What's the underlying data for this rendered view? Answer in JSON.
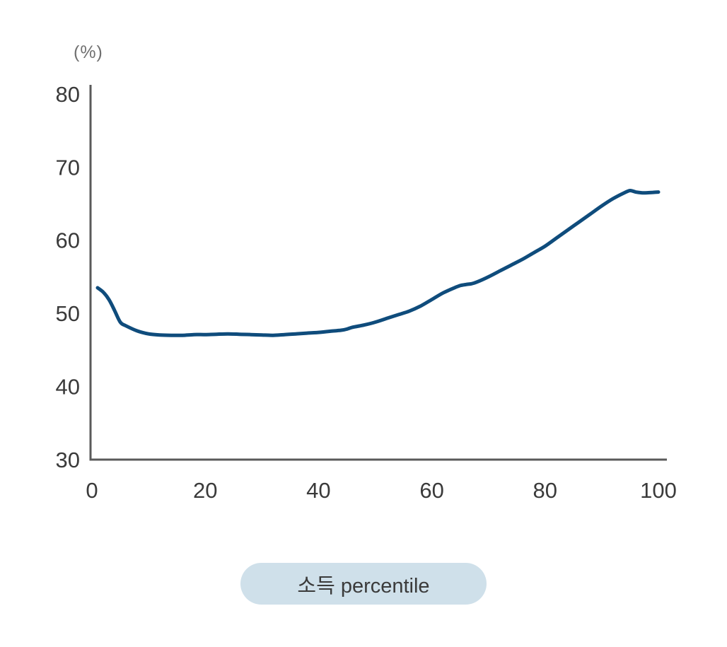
{
  "page": {
    "background": "#ffffff"
  },
  "badge": {
    "bg_color": "#cfe0ea",
    "text_color": "#3b3b3b"
  },
  "chart_data": {
    "type": "line",
    "title": "",
    "ylabel": "(%)",
    "xlabel": "소득 percentile",
    "legend": "none",
    "grid": false,
    "xlim": [
      0,
      100
    ],
    "ylim": [
      30,
      80
    ],
    "xticks": [
      0,
      20,
      40,
      60,
      80,
      100
    ],
    "yticks": [
      30,
      40,
      50,
      60,
      70,
      80
    ],
    "line_color": "#0f4c7c",
    "axis_color": "#5a5a5a",
    "tick_label_color": "#3a3a3a",
    "x": [
      1,
      2,
      3,
      4,
      5,
      6,
      8,
      10,
      12,
      14,
      16,
      18,
      20,
      22,
      24,
      26,
      28,
      30,
      32,
      34,
      36,
      38,
      40,
      42,
      44,
      45,
      46,
      48,
      50,
      52,
      54,
      56,
      58,
      60,
      62,
      64,
      65,
      66,
      67,
      68,
      70,
      72,
      74,
      76,
      78,
      80,
      82,
      84,
      86,
      88,
      90,
      92,
      94,
      95,
      96,
      97,
      98,
      99,
      100
    ],
    "y": [
      53.5,
      52.9,
      51.9,
      50.4,
      48.8,
      48.3,
      47.6,
      47.2,
      47.05,
      47.0,
      47.0,
      47.1,
      47.1,
      47.15,
      47.2,
      47.15,
      47.1,
      47.05,
      47.0,
      47.1,
      47.2,
      47.3,
      47.4,
      47.55,
      47.7,
      47.85,
      48.1,
      48.4,
      48.8,
      49.3,
      49.8,
      50.3,
      51.0,
      51.9,
      52.8,
      53.5,
      53.8,
      53.95,
      54.05,
      54.3,
      55.0,
      55.8,
      56.6,
      57.4,
      58.3,
      59.2,
      60.3,
      61.4,
      62.5,
      63.6,
      64.7,
      65.7,
      66.5,
      66.8,
      66.6,
      66.5,
      66.5,
      66.55,
      66.6
    ]
  }
}
